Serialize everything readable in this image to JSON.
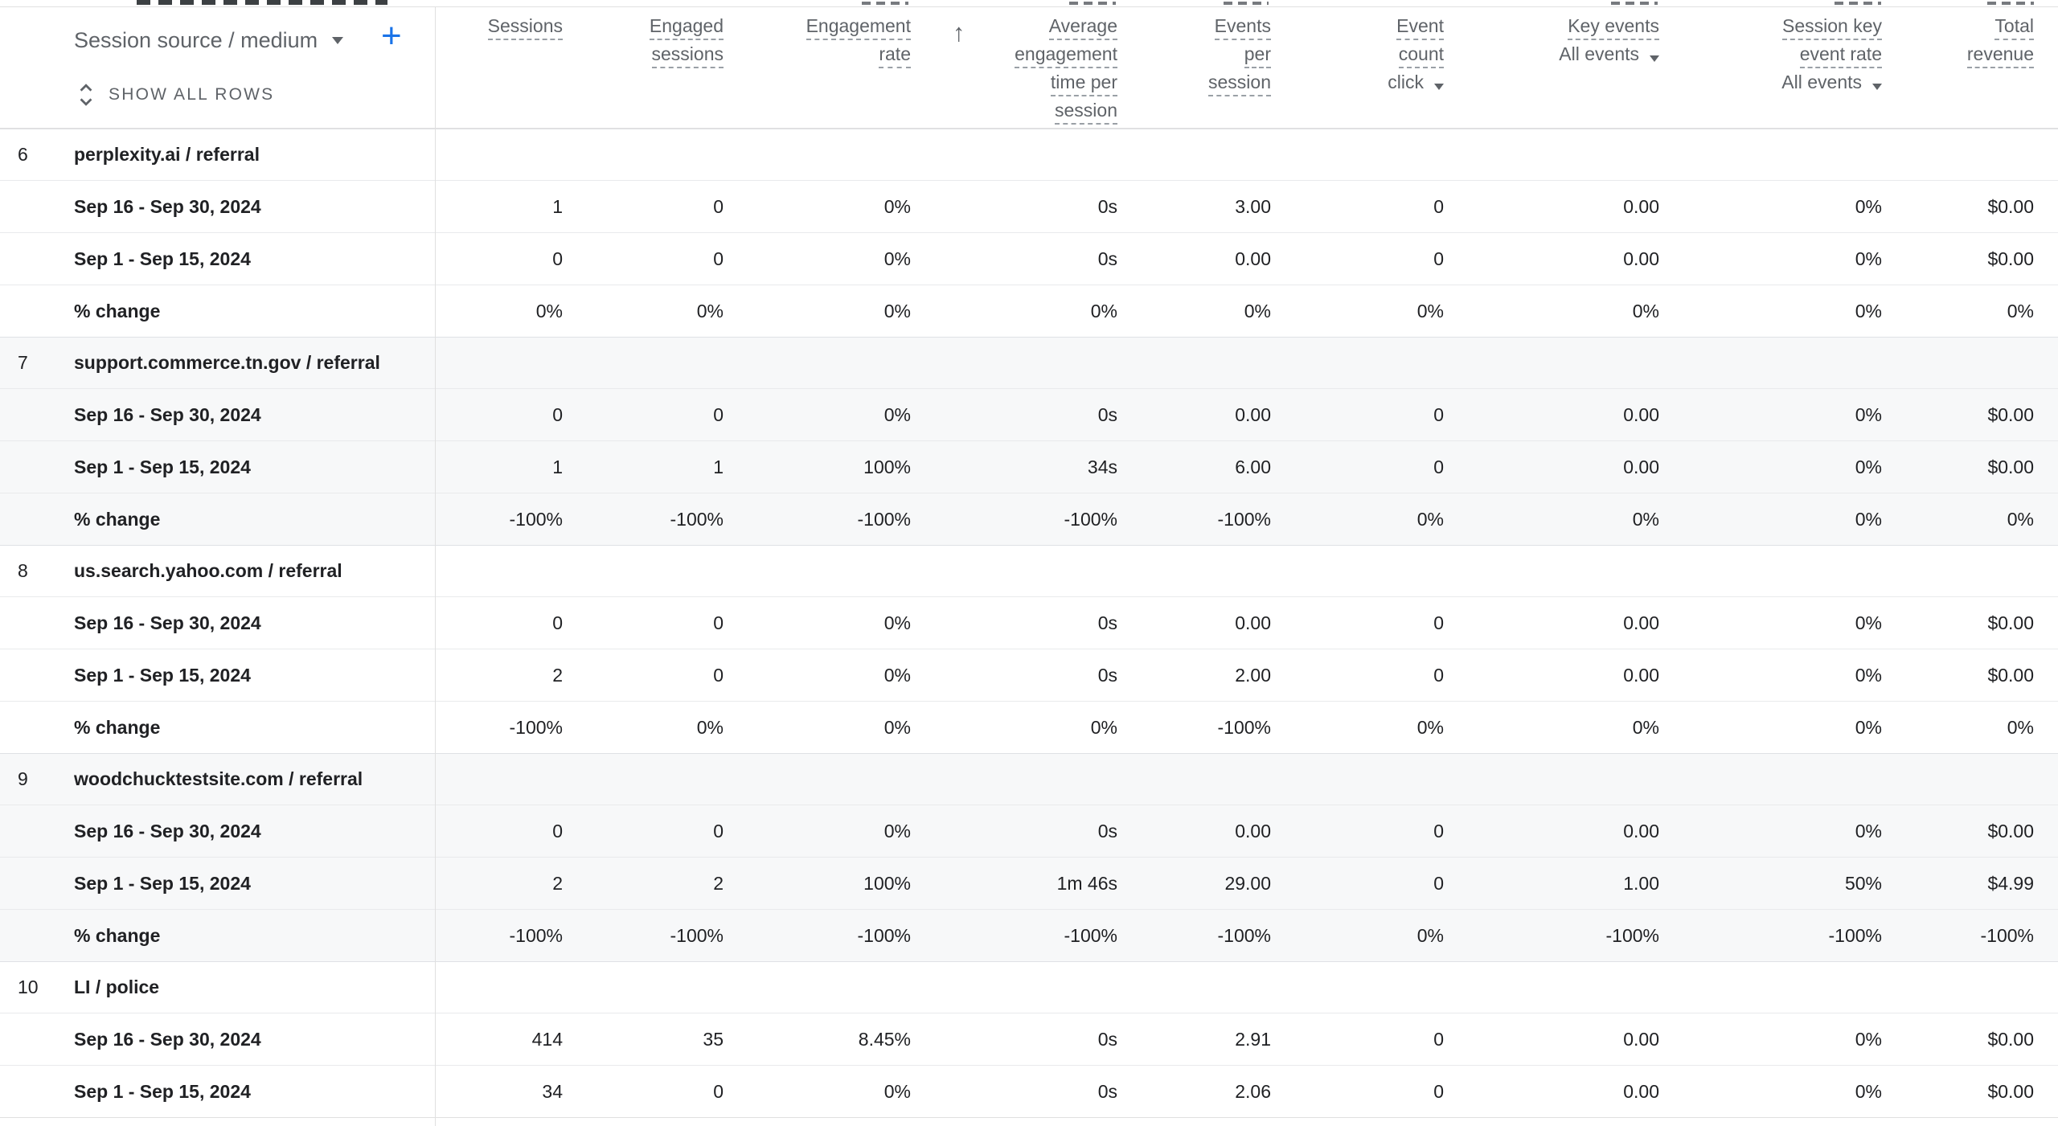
{
  "colors": {
    "accent_blue": "#1a73e8",
    "header_text": "#5f6368",
    "body_text": "#202124",
    "stripe": "#f7f8f9",
    "border": "#e0e0e0"
  },
  "table": {
    "dimension": {
      "label": "Session source / medium",
      "add_label": "+",
      "show_all_rows": "SHOW ALL ROWS"
    },
    "sort": {
      "column": "Average engagement time per session",
      "direction": "ascending",
      "glyph": "↑"
    },
    "columns": [
      {
        "key": "sessions",
        "label_lines": [
          "Sessions"
        ]
      },
      {
        "key": "engaged-sessions",
        "label_lines": [
          "Engaged",
          "sessions"
        ]
      },
      {
        "key": "engagement-rate",
        "label_lines": [
          "Engagement",
          "rate"
        ]
      },
      {
        "key": "avg-engagement-time-per-session",
        "label_lines": [
          "Average",
          "engagement",
          "time per",
          "session"
        ],
        "sorted": true
      },
      {
        "key": "events-per-session",
        "label_lines": [
          "Events",
          "per",
          "session"
        ]
      },
      {
        "key": "event-count",
        "label_lines": [
          "Event",
          "count"
        ],
        "selector": "click"
      },
      {
        "key": "key-events",
        "label_lines": [
          "Key events"
        ],
        "selector": "All events"
      },
      {
        "key": "session-key-event-rate",
        "label_lines": [
          "Session key",
          "event rate"
        ],
        "selector": "All events"
      },
      {
        "key": "total-revenue",
        "label_lines": [
          "Total",
          "revenue"
        ]
      }
    ],
    "rows": [
      {
        "index": "6",
        "name": "perplexity.ai / referral",
        "striped": false,
        "sub_rows": [
          {
            "label": "Sep 16 - Sep 30, 2024",
            "values": [
              "1",
              "0",
              "0%",
              "0s",
              "3.00",
              "0",
              "0.00",
              "0%",
              "$0.00"
            ]
          },
          {
            "label": "Sep 1 - Sep 15, 2024",
            "values": [
              "0",
              "0",
              "0%",
              "0s",
              "0.00",
              "0",
              "0.00",
              "0%",
              "$0.00"
            ]
          },
          {
            "label": "% change",
            "values": [
              "0%",
              "0%",
              "0%",
              "0%",
              "0%",
              "0%",
              "0%",
              "0%",
              "0%"
            ]
          }
        ]
      },
      {
        "index": "7",
        "name": "support.commerce.tn.gov / referral",
        "striped": true,
        "sub_rows": [
          {
            "label": "Sep 16 - Sep 30, 2024",
            "values": [
              "0",
              "0",
              "0%",
              "0s",
              "0.00",
              "0",
              "0.00",
              "0%",
              "$0.00"
            ]
          },
          {
            "label": "Sep 1 - Sep 15, 2024",
            "values": [
              "1",
              "1",
              "100%",
              "34s",
              "6.00",
              "0",
              "0.00",
              "0%",
              "$0.00"
            ]
          },
          {
            "label": "% change",
            "values": [
              "-100%",
              "-100%",
              "-100%",
              "-100%",
              "-100%",
              "0%",
              "0%",
              "0%",
              "0%"
            ]
          }
        ]
      },
      {
        "index": "8",
        "name": "us.search.yahoo.com / referral",
        "striped": false,
        "sub_rows": [
          {
            "label": "Sep 16 - Sep 30, 2024",
            "values": [
              "0",
              "0",
              "0%",
              "0s",
              "0.00",
              "0",
              "0.00",
              "0%",
              "$0.00"
            ]
          },
          {
            "label": "Sep 1 - Sep 15, 2024",
            "values": [
              "2",
              "0",
              "0%",
              "0s",
              "2.00",
              "0",
              "0.00",
              "0%",
              "$0.00"
            ]
          },
          {
            "label": "% change",
            "values": [
              "-100%",
              "0%",
              "0%",
              "0%",
              "-100%",
              "0%",
              "0%",
              "0%",
              "0%"
            ]
          }
        ]
      },
      {
        "index": "9",
        "name": "woodchucktestsite.com / referral",
        "striped": true,
        "sub_rows": [
          {
            "label": "Sep 16 - Sep 30, 2024",
            "values": [
              "0",
              "0",
              "0%",
              "0s",
              "0.00",
              "0",
              "0.00",
              "0%",
              "$0.00"
            ]
          },
          {
            "label": "Sep 1 - Sep 15, 2024",
            "values": [
              "2",
              "2",
              "100%",
              "1m 46s",
              "29.00",
              "0",
              "1.00",
              "50%",
              "$4.99"
            ]
          },
          {
            "label": "% change",
            "values": [
              "-100%",
              "-100%",
              "-100%",
              "-100%",
              "-100%",
              "0%",
              "-100%",
              "-100%",
              "-100%"
            ]
          }
        ]
      },
      {
        "index": "10",
        "name": "LI / police",
        "striped": false,
        "sub_rows": [
          {
            "label": "Sep 16 - Sep 30, 2024",
            "values": [
              "414",
              "35",
              "8.45%",
              "0s",
              "2.91",
              "0",
              "0.00",
              "0%",
              "$0.00"
            ]
          },
          {
            "label": "Sep 1 - Sep 15, 2024",
            "values": [
              "34",
              "0",
              "0%",
              "0s",
              "2.06",
              "0",
              "0.00",
              "0%",
              "$0.00"
            ]
          }
        ]
      }
    ]
  }
}
